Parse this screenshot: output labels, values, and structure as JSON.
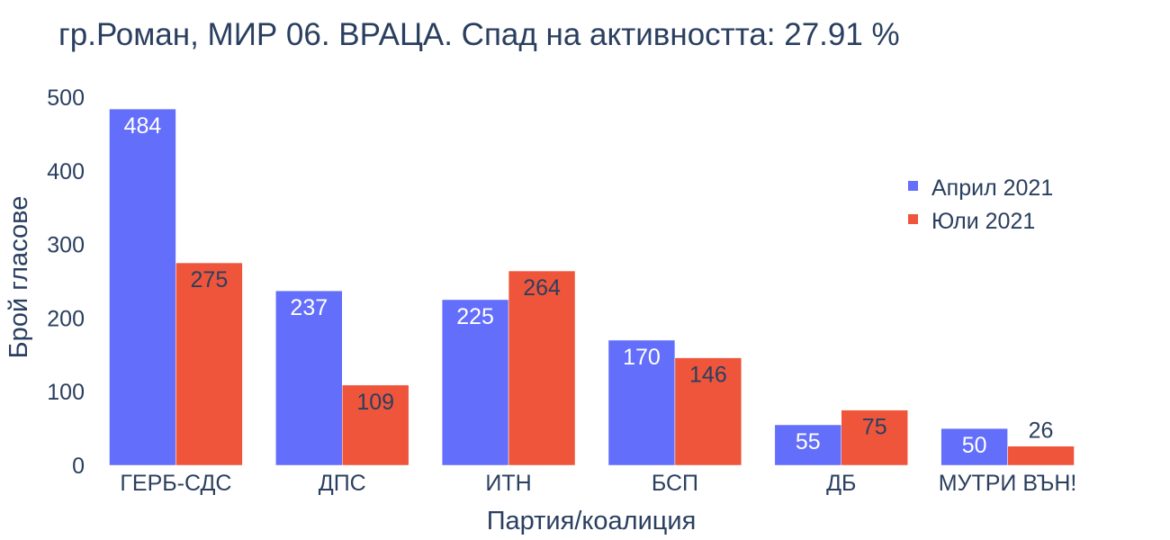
{
  "chart_data": {
    "type": "bar",
    "title": "гр.Роман, МИР 06. ВРАЦА. Спад на активността: 27.91 %",
    "xlabel": "Партия/коалиция",
    "ylabel": "Брой гласове",
    "categories": [
      "ГЕРБ-СДС",
      "ДПС",
      "ИТН",
      "БСП",
      "ДБ",
      "МУТРИ ВЪН!"
    ],
    "series": [
      {
        "name": "Април 2021",
        "color": "#636efa",
        "values": [
          484,
          237,
          225,
          170,
          55,
          50
        ],
        "labels": [
          "484",
          "237",
          "225",
          "170",
          "55",
          "50"
        ]
      },
      {
        "name": "Юли 2021",
        "color": "#ef553b",
        "values": [
          275,
          109,
          264,
          146,
          75,
          26
        ],
        "labels": [
          "275",
          "109",
          "264",
          "146",
          "75",
          "26"
        ]
      }
    ],
    "ylim": [
      0,
      500
    ],
    "yticks": [
      "0",
      "100",
      "200",
      "300",
      "400",
      "500"
    ],
    "grid": false,
    "legend_position": "top-right"
  }
}
